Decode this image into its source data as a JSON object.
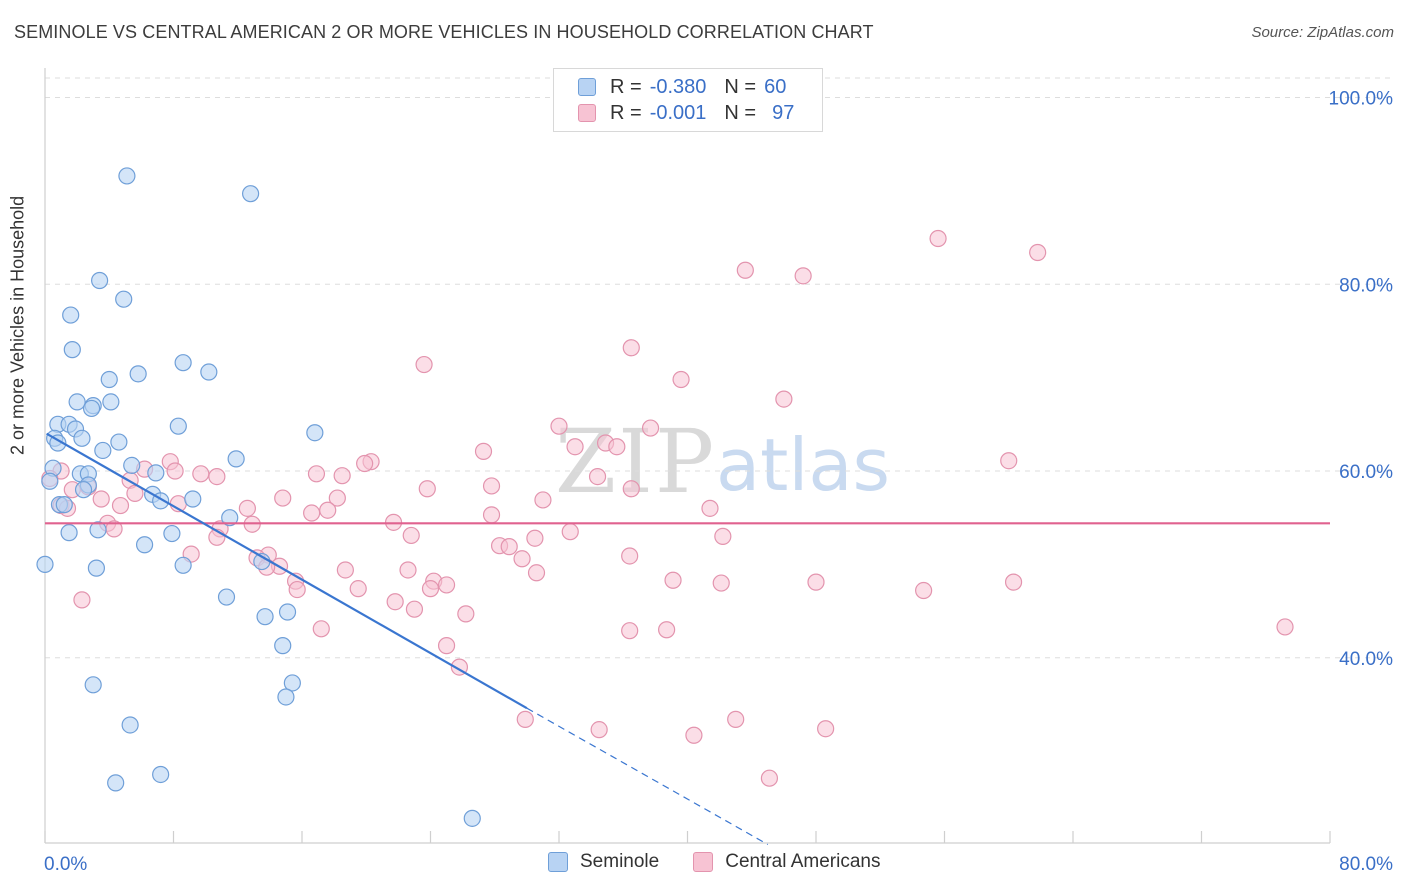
{
  "header": {
    "title": "SEMINOLE VS CENTRAL AMERICAN 2 OR MORE VEHICLES IN HOUSEHOLD CORRELATION CHART",
    "source": "Source: ZipAtlas.com"
  },
  "legend_top": {
    "rows": [
      {
        "r_label": "R =",
        "r_value": "-0.380",
        "n_label": "N =",
        "n_value": "60"
      },
      {
        "r_label": "R =",
        "r_value": "-0.001",
        "n_label": "N =",
        "n_value": "97"
      }
    ]
  },
  "colors": {
    "seminole_fill": "#b8d3f3",
    "seminole_stroke": "#6f9fd8",
    "seminole_line": "#3a76d0",
    "central_fill": "#f7c3d3",
    "central_stroke": "#e394ae",
    "central_line": "#e0628f",
    "axis_text": "#3a6fc7",
    "grid": "#dddddd"
  },
  "watermark": {
    "zip": "ZIP",
    "atlas": "atlas"
  },
  "chart_data": {
    "type": "scatter",
    "title": "SEMINOLE VS CENTRAL AMERICAN 2 OR MORE VEHICLES IN HOUSEHOLD CORRELATION CHART",
    "xlabel": "",
    "ylabel": "2 or more Vehicles in Household",
    "xlim": [
      0,
      80
    ],
    "ylim": [
      20,
      102
    ],
    "x_tick_labels": [
      "0.0%",
      "80.0%"
    ],
    "y_ticks": [
      40,
      60,
      80,
      100
    ],
    "y_tick_labels": [
      "40.0%",
      "60.0%",
      "80.0%",
      "100.0%"
    ],
    "grid": true,
    "legend_position": "bottom-center",
    "series": [
      {
        "name": "Seminole",
        "r": -0.38,
        "n": 60,
        "trend": {
          "x_start": 0.1,
          "y_start": 64.0,
          "x_solid_end": 30.0,
          "y_solid_end": 34.6,
          "x_dash_end": 45.0,
          "y_dash_end": 20.0
        },
        "points": [
          [
            5.1,
            91.6
          ],
          [
            12.8,
            89.7
          ],
          [
            3.4,
            80.4
          ],
          [
            4.9,
            78.4
          ],
          [
            1.6,
            76.7
          ],
          [
            1.7,
            73.0
          ],
          [
            8.6,
            71.6
          ],
          [
            10.2,
            70.6
          ],
          [
            5.8,
            70.4
          ],
          [
            4.0,
            69.8
          ],
          [
            2.0,
            67.4
          ],
          [
            4.1,
            67.4
          ],
          [
            3.0,
            67.0
          ],
          [
            2.9,
            66.7
          ],
          [
            0.8,
            65.0
          ],
          [
            1.5,
            65.0
          ],
          [
            1.9,
            64.5
          ],
          [
            8.3,
            64.8
          ],
          [
            16.8,
            64.1
          ],
          [
            0.6,
            63.5
          ],
          [
            2.3,
            63.5
          ],
          [
            0.8,
            63.0
          ],
          [
            4.6,
            63.1
          ],
          [
            3.6,
            62.2
          ],
          [
            11.9,
            61.3
          ],
          [
            5.4,
            60.6
          ],
          [
            0.5,
            60.3
          ],
          [
            6.9,
            59.8
          ],
          [
            2.2,
            59.7
          ],
          [
            2.7,
            59.7
          ],
          [
            0.3,
            58.9
          ],
          [
            2.7,
            58.5
          ],
          [
            2.4,
            58.0
          ],
          [
            6.7,
            57.5
          ],
          [
            9.2,
            57.0
          ],
          [
            7.2,
            56.8
          ],
          [
            0.9,
            56.4
          ],
          [
            1.2,
            56.4
          ],
          [
            11.5,
            55.0
          ],
          [
            3.3,
            53.7
          ],
          [
            1.5,
            53.4
          ],
          [
            7.9,
            53.3
          ],
          [
            6.2,
            52.1
          ],
          [
            13.5,
            50.3
          ],
          [
            0.0,
            50.0
          ],
          [
            3.2,
            49.6
          ],
          [
            8.6,
            49.9
          ],
          [
            11.3,
            46.5
          ],
          [
            15.1,
            44.9
          ],
          [
            13.7,
            44.4
          ],
          [
            14.8,
            41.3
          ],
          [
            15.4,
            37.3
          ],
          [
            3.0,
            37.1
          ],
          [
            15.0,
            35.8
          ],
          [
            5.3,
            32.8
          ],
          [
            7.2,
            27.5
          ],
          [
            4.4,
            26.6
          ],
          [
            26.6,
            22.8
          ]
        ]
      },
      {
        "name": "Central Americans",
        "r": -0.001,
        "n": 97,
        "trend": {
          "x_start": 0.0,
          "y_start": 54.4,
          "x_end": 80.0,
          "y_end": 54.4
        },
        "points": [
          [
            55.6,
            84.9
          ],
          [
            61.8,
            83.4
          ],
          [
            43.6,
            81.5
          ],
          [
            47.2,
            80.9
          ],
          [
            36.5,
            73.2
          ],
          [
            23.6,
            71.4
          ],
          [
            39.6,
            69.8
          ],
          [
            46.0,
            67.7
          ],
          [
            32.0,
            64.8
          ],
          [
            37.7,
            64.6
          ],
          [
            34.9,
            63.0
          ],
          [
            33.0,
            62.6
          ],
          [
            35.6,
            62.6
          ],
          [
            27.3,
            62.1
          ],
          [
            60.0,
            61.1
          ],
          [
            7.8,
            61.0
          ],
          [
            20.3,
            61.0
          ],
          [
            19.9,
            60.8
          ],
          [
            1.0,
            60.0
          ],
          [
            6.2,
            60.2
          ],
          [
            8.1,
            60.0
          ],
          [
            9.7,
            59.7
          ],
          [
            16.9,
            59.7
          ],
          [
            18.5,
            59.5
          ],
          [
            10.7,
            59.4
          ],
          [
            0.3,
            59.2
          ],
          [
            5.3,
            59.0
          ],
          [
            34.4,
            59.4
          ],
          [
            27.8,
            58.4
          ],
          [
            23.8,
            58.1
          ],
          [
            36.5,
            58.1
          ],
          [
            2.7,
            58.3
          ],
          [
            5.6,
            57.6
          ],
          [
            1.7,
            58.0
          ],
          [
            14.8,
            57.1
          ],
          [
            18.2,
            57.1
          ],
          [
            3.5,
            57.0
          ],
          [
            8.3,
            56.5
          ],
          [
            12.6,
            56.0
          ],
          [
            31.0,
            56.9
          ],
          [
            1.0,
            56.3
          ],
          [
            1.4,
            56.0
          ],
          [
            4.7,
            56.3
          ],
          [
            41.4,
            56.0
          ],
          [
            17.6,
            55.8
          ],
          [
            27.8,
            55.3
          ],
          [
            16.6,
            55.5
          ],
          [
            3.9,
            54.4
          ],
          [
            12.9,
            54.3
          ],
          [
            10.9,
            53.8
          ],
          [
            4.3,
            53.8
          ],
          [
            21.7,
            54.5
          ],
          [
            32.7,
            53.5
          ],
          [
            10.7,
            52.9
          ],
          [
            22.8,
            53.1
          ],
          [
            30.5,
            52.8
          ],
          [
            42.2,
            53.0
          ],
          [
            28.3,
            52.0
          ],
          [
            28.9,
            51.9
          ],
          [
            9.1,
            51.1
          ],
          [
            13.9,
            51.0
          ],
          [
            29.7,
            50.6
          ],
          [
            36.4,
            50.9
          ],
          [
            13.2,
            50.7
          ],
          [
            14.6,
            49.8
          ],
          [
            13.8,
            49.7
          ],
          [
            18.7,
            49.4
          ],
          [
            22.6,
            49.4
          ],
          [
            30.6,
            49.1
          ],
          [
            39.1,
            48.3
          ],
          [
            24.2,
            48.2
          ],
          [
            25.0,
            47.8
          ],
          [
            42.1,
            48.0
          ],
          [
            48.0,
            48.1
          ],
          [
            60.3,
            48.1
          ],
          [
            15.6,
            48.2
          ],
          [
            19.5,
            47.4
          ],
          [
            24.0,
            47.4
          ],
          [
            54.7,
            47.2
          ],
          [
            15.7,
            47.3
          ],
          [
            21.8,
            46.0
          ],
          [
            2.3,
            46.2
          ],
          [
            23.0,
            45.2
          ],
          [
            26.2,
            44.7
          ],
          [
            17.2,
            43.1
          ],
          [
            36.4,
            42.9
          ],
          [
            38.7,
            43.0
          ],
          [
            77.2,
            43.3
          ],
          [
            25.0,
            41.3
          ],
          [
            25.8,
            39.0
          ],
          [
            29.9,
            33.4
          ],
          [
            43.0,
            33.4
          ],
          [
            34.5,
            32.3
          ],
          [
            48.6,
            32.4
          ],
          [
            40.4,
            31.7
          ],
          [
            45.1,
            27.1
          ]
        ]
      }
    ]
  }
}
